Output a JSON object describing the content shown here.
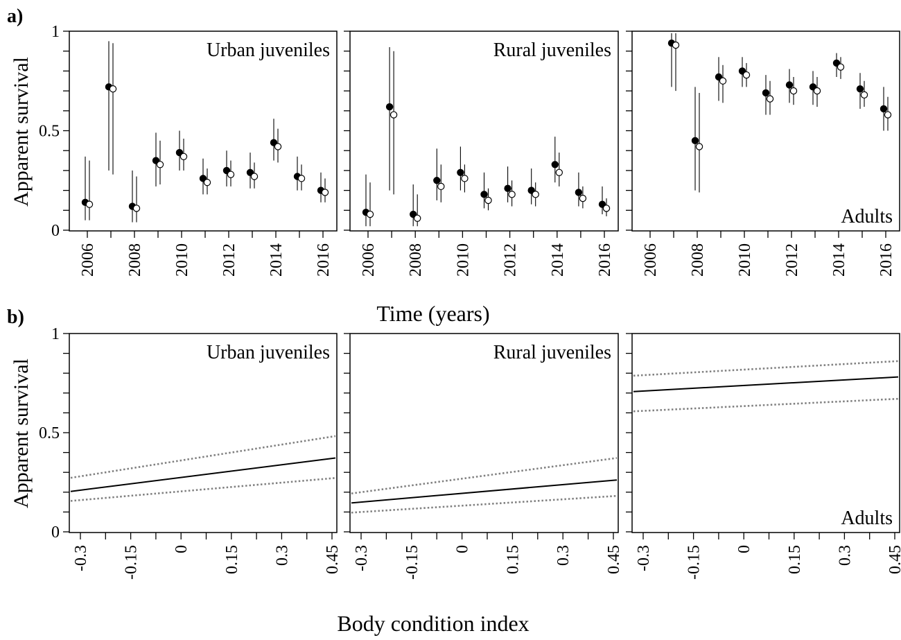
{
  "panel_labels": [
    "a)",
    "b)"
  ],
  "top_row": {
    "ylabel": "Apparent survival",
    "xlabel": "Time (years)",
    "yticks": [
      "0",
      "0.5",
      "1"
    ],
    "xtick_labels": [
      "2006",
      "2008",
      "2010",
      "2012",
      "2014",
      "2016"
    ]
  },
  "bottom_row": {
    "ylabel": "Apparent survival",
    "xlabel": "Body condition index",
    "yticks": [
      "0",
      "0.5",
      "1"
    ],
    "xtick_labels": [
      "-0.3",
      "-0.15",
      "0",
      "0.15",
      "0.3",
      "0.45"
    ]
  },
  "chart_data": [
    {
      "type": "scatter",
      "panel": "a",
      "title": "Urban juveniles",
      "ylim": [
        0,
        1
      ],
      "xlim": [
        2006,
        2016
      ],
      "x": [
        2006,
        2007,
        2008,
        2009,
        2010,
        2011,
        2012,
        2013,
        2014,
        2015,
        2016
      ],
      "series": [
        {
          "marker": "filled",
          "values": [
            0.14,
            0.72,
            0.12,
            0.35,
            0.39,
            0.26,
            0.3,
            0.29,
            0.44,
            0.27,
            0.2
          ],
          "lower": [
            0.05,
            0.3,
            0.04,
            0.22,
            0.3,
            0.18,
            0.22,
            0.21,
            0.35,
            0.2,
            0.14
          ],
          "upper": [
            0.37,
            0.95,
            0.3,
            0.49,
            0.5,
            0.36,
            0.4,
            0.39,
            0.56,
            0.37,
            0.29
          ]
        },
        {
          "marker": "open",
          "values": [
            0.13,
            0.71,
            0.11,
            0.33,
            0.37,
            0.24,
            0.28,
            0.27,
            0.42,
            0.26,
            0.19
          ],
          "lower": [
            0.05,
            0.28,
            0.04,
            0.23,
            0.3,
            0.18,
            0.22,
            0.21,
            0.34,
            0.2,
            0.14
          ],
          "upper": [
            0.35,
            0.94,
            0.27,
            0.45,
            0.46,
            0.31,
            0.35,
            0.34,
            0.51,
            0.33,
            0.26
          ]
        }
      ]
    },
    {
      "type": "scatter",
      "panel": "a",
      "title": "Rural juveniles",
      "ylim": [
        0,
        1
      ],
      "xlim": [
        2006,
        2016
      ],
      "x": [
        2006,
        2007,
        2008,
        2009,
        2010,
        2011,
        2012,
        2013,
        2014,
        2015,
        2016
      ],
      "series": [
        {
          "marker": "filled",
          "values": [
            0.09,
            0.62,
            0.08,
            0.25,
            0.29,
            0.18,
            0.21,
            0.2,
            0.33,
            0.19,
            0.13
          ],
          "lower": [
            0.02,
            0.2,
            0.02,
            0.15,
            0.2,
            0.11,
            0.14,
            0.13,
            0.24,
            0.12,
            0.08
          ],
          "upper": [
            0.28,
            0.92,
            0.23,
            0.41,
            0.42,
            0.29,
            0.32,
            0.31,
            0.47,
            0.29,
            0.22
          ]
        },
        {
          "marker": "open",
          "values": [
            0.08,
            0.58,
            0.06,
            0.22,
            0.26,
            0.15,
            0.18,
            0.18,
            0.29,
            0.16,
            0.11
          ],
          "lower": [
            0.02,
            0.18,
            0.02,
            0.14,
            0.19,
            0.1,
            0.12,
            0.12,
            0.22,
            0.11,
            0.07
          ],
          "upper": [
            0.24,
            0.9,
            0.18,
            0.33,
            0.33,
            0.21,
            0.25,
            0.24,
            0.39,
            0.22,
            0.16
          ]
        }
      ]
    },
    {
      "type": "scatter",
      "panel": "a",
      "title": "Adults",
      "ylim": [
        0,
        1
      ],
      "xlim": [
        2006,
        2016
      ],
      "x": [
        2007,
        2008,
        2009,
        2010,
        2011,
        2012,
        2013,
        2014,
        2015,
        2016
      ],
      "series": [
        {
          "marker": "filled",
          "values": [
            0.94,
            0.45,
            0.77,
            0.8,
            0.69,
            0.73,
            0.72,
            0.84,
            0.71,
            0.61
          ],
          "lower": [
            0.72,
            0.2,
            0.65,
            0.72,
            0.58,
            0.64,
            0.63,
            0.77,
            0.61,
            0.5
          ],
          "upper": [
            0.99,
            0.72,
            0.87,
            0.87,
            0.78,
            0.81,
            0.8,
            0.89,
            0.79,
            0.72
          ]
        },
        {
          "marker": "open",
          "values": [
            0.93,
            0.42,
            0.75,
            0.78,
            0.66,
            0.7,
            0.7,
            0.82,
            0.68,
            0.58
          ],
          "lower": [
            0.7,
            0.19,
            0.64,
            0.72,
            0.58,
            0.63,
            0.62,
            0.76,
            0.62,
            0.5
          ],
          "upper": [
            0.99,
            0.69,
            0.83,
            0.84,
            0.75,
            0.77,
            0.77,
            0.87,
            0.75,
            0.67
          ]
        }
      ]
    },
    {
      "type": "line",
      "panel": "b",
      "title": "Urban juveniles",
      "ylim": [
        0,
        1
      ],
      "xlim": [
        -0.3,
        0.45
      ],
      "x": [
        -0.3,
        0.45
      ],
      "series": [
        {
          "style": "solid",
          "values": [
            0.21,
            0.37
          ]
        },
        {
          "style": "dotted",
          "values": [
            0.28,
            0.48
          ]
        },
        {
          "style": "dotted",
          "values": [
            0.16,
            0.27
          ]
        }
      ]
    },
    {
      "type": "line",
      "panel": "b",
      "title": "Rural juveniles",
      "ylim": [
        0,
        1
      ],
      "xlim": [
        -0.3,
        0.45
      ],
      "x": [
        -0.3,
        0.45
      ],
      "series": [
        {
          "style": "solid",
          "values": [
            0.15,
            0.26
          ]
        },
        {
          "style": "dotted",
          "values": [
            0.2,
            0.37
          ]
        },
        {
          "style": "dotted",
          "values": [
            0.1,
            0.18
          ]
        }
      ]
    },
    {
      "type": "line",
      "panel": "b",
      "title": "Adults",
      "ylim": [
        0,
        1
      ],
      "xlim": [
        -0.3,
        0.45
      ],
      "x": [
        -0.3,
        0.45
      ],
      "series": [
        {
          "style": "solid",
          "values": [
            0.71,
            0.78
          ]
        },
        {
          "style": "dotted",
          "values": [
            0.79,
            0.86
          ]
        },
        {
          "style": "dotted",
          "values": [
            0.61,
            0.67
          ]
        }
      ]
    }
  ]
}
